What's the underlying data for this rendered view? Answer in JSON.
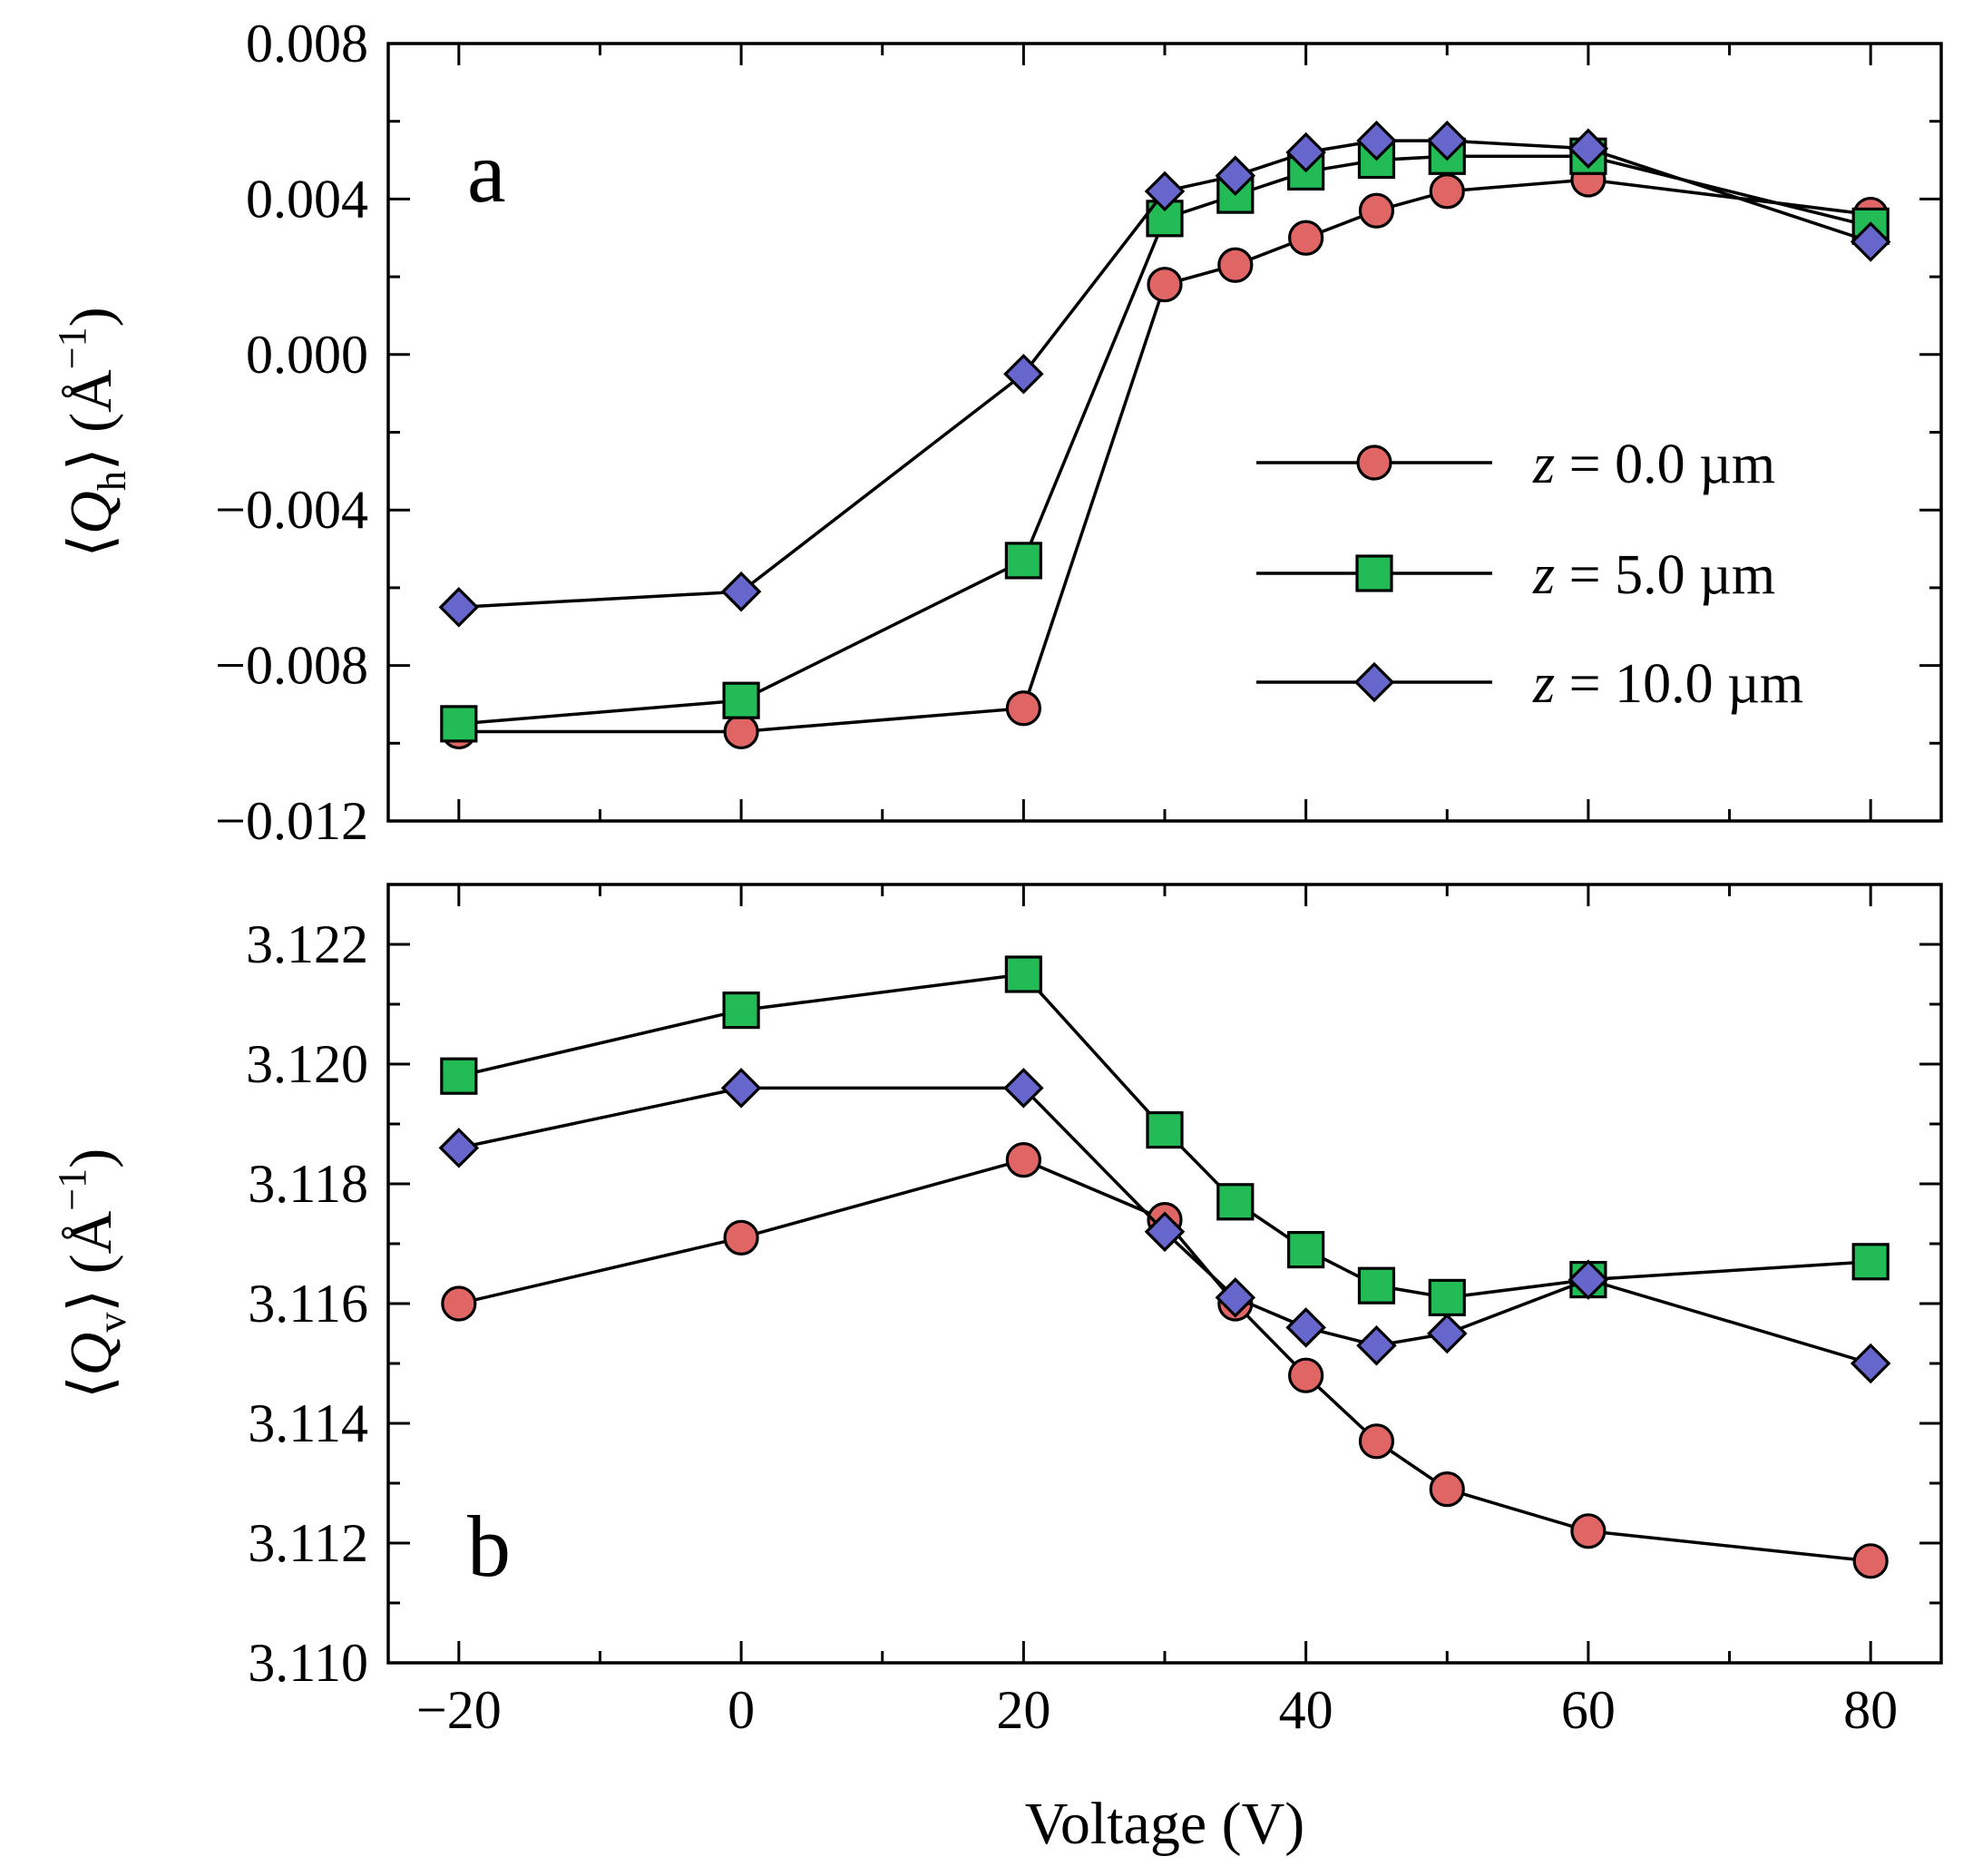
{
  "chart_data": [
    {
      "type": "line",
      "panel_label": "a",
      "ylabel": "⟨Q_h⟩ (Å⁻¹)",
      "ylabel_parts": {
        "open": "⟨",
        "symbol": "Q",
        "subscript": "h",
        "close": "⟩ (Å",
        "power": "−1",
        "end": ")"
      },
      "xlim": [
        -25,
        85
      ],
      "ylim": [
        -0.012,
        0.008
      ],
      "yticks": [
        -0.012,
        -0.008,
        -0.004,
        0.0,
        0.004,
        0.008
      ],
      "ytick_labels": [
        "−0.012",
        "−0.008",
        "−0.004",
        "0.000",
        "0.004",
        "0.008"
      ],
      "legend_position": "right-middle",
      "x": [
        -20,
        0,
        20,
        30,
        35,
        40,
        45,
        50,
        60,
        80
      ],
      "series": [
        {
          "name": "z = 0.0 µm",
          "label_var": "z",
          "label_rest": " = 0.0 µm",
          "marker": "circle",
          "color": "#e06666",
          "values": [
            -0.0097,
            -0.0097,
            -0.0091,
            0.0018,
            0.0023,
            0.003,
            0.0037,
            0.0042,
            0.0045,
            0.0036
          ]
        },
        {
          "name": "z = 5.0 µm",
          "label_var": "z",
          "label_rest": " = 5.0 µm",
          "marker": "square",
          "color": "#22bb55",
          "values": [
            -0.0095,
            -0.0089,
            -0.0053,
            0.0035,
            0.0041,
            0.0047,
            0.005,
            0.0051,
            0.0051,
            0.0033
          ]
        },
        {
          "name": "z = 10.0 µm",
          "label_var": "z",
          "label_rest": " = 10.0 µm",
          "marker": "diamond",
          "color": "#6666cc",
          "values": [
            -0.0065,
            -0.0061,
            -0.0005,
            0.0042,
            0.0046,
            0.0052,
            0.0055,
            0.0055,
            0.0053,
            0.0029
          ]
        }
      ]
    },
    {
      "type": "line",
      "panel_label": "b",
      "ylabel": "⟨Q_v⟩ (Å⁻¹)",
      "ylabel_parts": {
        "open": "⟨",
        "symbol": "Q",
        "subscript": "v",
        "close": "⟩ (Å",
        "power": "−1",
        "end": ")"
      },
      "xlabel": "Voltage (V)",
      "xlim": [
        -25,
        85
      ],
      "ylim": [
        3.11,
        3.123
      ],
      "xticks": [
        -20,
        0,
        20,
        40,
        60,
        80
      ],
      "xtick_labels": [
        "−20",
        "0",
        "20",
        "40",
        "60",
        "80"
      ],
      "yticks": [
        3.11,
        3.112,
        3.114,
        3.116,
        3.118,
        3.12,
        3.122
      ],
      "ytick_labels": [
        "3.110",
        "3.112",
        "3.114",
        "3.116",
        "3.118",
        "3.120",
        "3.122"
      ],
      "x": [
        -20,
        0,
        20,
        30,
        35,
        40,
        45,
        50,
        60,
        80
      ],
      "series": [
        {
          "name": "z = 0.0 µm",
          "marker": "circle",
          "color": "#e06666",
          "values": [
            3.116,
            3.1171,
            3.1184,
            3.1174,
            3.116,
            3.1148,
            3.1137,
            3.1129,
            3.1122,
            3.1117
          ]
        },
        {
          "name": "z = 5.0 µm",
          "marker": "square",
          "color": "#22bb55",
          "values": [
            3.1198,
            3.1209,
            3.1215,
            3.1189,
            3.1177,
            3.1169,
            3.1163,
            3.1161,
            3.1164,
            3.1167
          ]
        },
        {
          "name": "z = 10.0 µm",
          "marker": "diamond",
          "color": "#6666cc",
          "values": [
            3.1186,
            3.1196,
            3.1196,
            3.1172,
            3.1161,
            3.1156,
            3.1153,
            3.1155,
            3.1164,
            3.115
          ]
        }
      ]
    }
  ]
}
